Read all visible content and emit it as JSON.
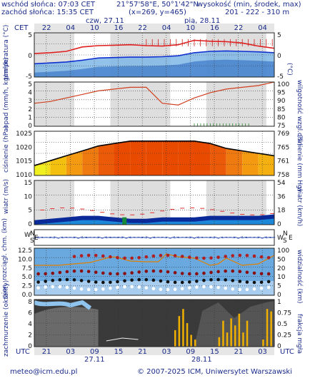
{
  "header": {
    "sunrise": "wschód słońca: 07:03 CET",
    "sunset": "zachód słońca: 15:35 CET",
    "coords": "21°57'58\"E, 50°1'42\"N",
    "grid": "(x=269,  y=465)",
    "height_label": "wysokość (min, środek, max)",
    "height_values": "201 - 222 - 310 m"
  },
  "top_axis": {
    "tz": "CET",
    "day1": "czw, 27.11",
    "day2": "pią, 28.11",
    "hours": [
      "22",
      "04",
      "10",
      "16",
      "22",
      "04",
      "10",
      "16",
      "22",
      "04"
    ]
  },
  "bottom_axis": {
    "tz_left": "UTC",
    "tz_right": "UTC",
    "hours": [
      "21",
      "03",
      "09",
      "15",
      "21",
      "03",
      "09",
      "15",
      "21",
      "03"
    ],
    "day1": "27.11",
    "day2": "28.11"
  },
  "footer": {
    "email": "meteo@icm.edu.pl",
    "copyright": "© 2007-2025 ICM, Uniwersytet Warszawski"
  },
  "panels": {
    "temperature": {
      "left_label": "temperatura (°C)",
      "right_label": "(°C)",
      "ticks_left": [
        "5",
        "0",
        "-5"
      ],
      "ticks_right": [
        "5",
        "0",
        "-5"
      ]
    },
    "precip": {
      "left_label": "opad (mm/h, kg/m²/h)",
      "right_label": "wilgotność wzgl. (%)",
      "ticks_left": [
        "5",
        "4",
        "3",
        "2",
        "1",
        "0"
      ],
      "ticks_right": [
        "100",
        "95",
        "90",
        "85",
        "80",
        "75"
      ]
    },
    "pressure": {
      "left_label": "ciśnienie (hPa)",
      "right_label": "ciśnienie (mm Hg)",
      "ticks_left": [
        "1025",
        "1020",
        "1015",
        "1010"
      ],
      "ticks_right": [
        "769",
        "765",
        "761",
        "758"
      ]
    },
    "wind": {
      "left_label": "wiatr (m/s)",
      "right_label": "wiatr (km/h)",
      "ticks_left": [
        "15",
        "10",
        "5",
        "0"
      ],
      "ticks_right": [
        "54",
        "36",
        "18",
        "0"
      ]
    },
    "winddir": {
      "left_label": "W N E S",
      "right_label": "W N E S"
    },
    "cloud": {
      "left_label": "pion. rozciągł. chm. (km)",
      "right_label": "widzialność (km)",
      "ticks_left": [
        "12.5",
        "10.0",
        "7.5",
        "5.0",
        "2.5",
        "0.0"
      ],
      "ticks_right": [
        "100",
        "50",
        "20",
        "10",
        "5",
        "0"
      ]
    },
    "cover": {
      "left_label": "zachmurzenie (oktanty)",
      "right_label": "frakcja mgła",
      "ticks_left": [
        "8",
        "6",
        "4",
        "2",
        "0"
      ],
      "ticks_right": [
        "1",
        "0.75",
        "0.5",
        "0.25",
        "0"
      ]
    }
  },
  "colors": {
    "temp_red": "#e02020",
    "dew_blue": "#1030d0",
    "pressure_high": "#e84a00",
    "rh_line": "#e05020",
    "wind_dark": "#0a2a9a",
    "fog": "#f0b000"
  },
  "chart_data": [
    {
      "type": "line",
      "title": "",
      "ylabel": "temperatura (°C)",
      "ylim": [
        -5,
        5
      ],
      "x": [
        0,
        4,
        8,
        12,
        16,
        20,
        24,
        28,
        32,
        36,
        40,
        44,
        48,
        52,
        56,
        60
      ],
      "series": [
        {
          "values": [
            0.3,
            0.5,
            0.8,
            1.8,
            2.1,
            2.2,
            2.3,
            2.1,
            2.0,
            2.3,
            3.3,
            3.1,
            3.0,
            2.7,
            2.0,
            1.5
          ]
        },
        {
          "values": [
            -2.0,
            -1.8,
            -1.6,
            -1.2,
            -0.7,
            -0.6,
            -0.5,
            -0.5,
            -0.4,
            -0.2,
            0.5,
            0.8,
            0.9,
            0.8,
            0.7,
            0.5
          ]
        }
      ]
    },
    {
      "type": "line",
      "ylabel": "wilgotność wzgl. (%)",
      "ylim": [
        75,
        100
      ],
      "x": [
        0,
        4,
        8,
        12,
        16,
        20,
        24,
        28,
        32,
        36,
        40,
        44,
        48,
        52,
        56,
        60
      ],
      "series": [
        {
          "values": [
            88,
            89,
            91,
            93,
            95,
            96,
            97,
            97,
            88,
            87,
            91,
            94,
            96,
            97,
            98,
            100
          ]
        }
      ]
    },
    {
      "type": "area",
      "ylabel": "ciśnienie (hPa)",
      "ylim": [
        1008,
        1026
      ],
      "x": [
        0,
        4,
        8,
        12,
        16,
        20,
        24,
        28,
        32,
        36,
        40,
        44,
        48,
        52,
        56,
        60
      ],
      "values": [
        1012,
        1014,
        1016,
        1018,
        1020,
        1021,
        1022,
        1022,
        1022,
        1022,
        1022,
        1021,
        1019,
        1018,
        1017,
        1016
      ]
    },
    {
      "type": "line",
      "ylabel": "wiatr (m/s)",
      "ylim": [
        0,
        15
      ],
      "x": [
        0,
        4,
        8,
        12,
        16,
        20,
        24,
        28,
        32,
        36,
        40,
        44,
        48,
        52,
        56,
        60
      ],
      "series": [
        {
          "values": [
            1.5,
            2.0,
            2.5,
            3.0,
            3.0,
            2.5,
            2.0,
            2.0,
            2.5,
            2.5,
            2.5,
            3.0,
            3.0,
            3.0,
            3.0,
            3.5
          ]
        }
      ]
    }
  ]
}
